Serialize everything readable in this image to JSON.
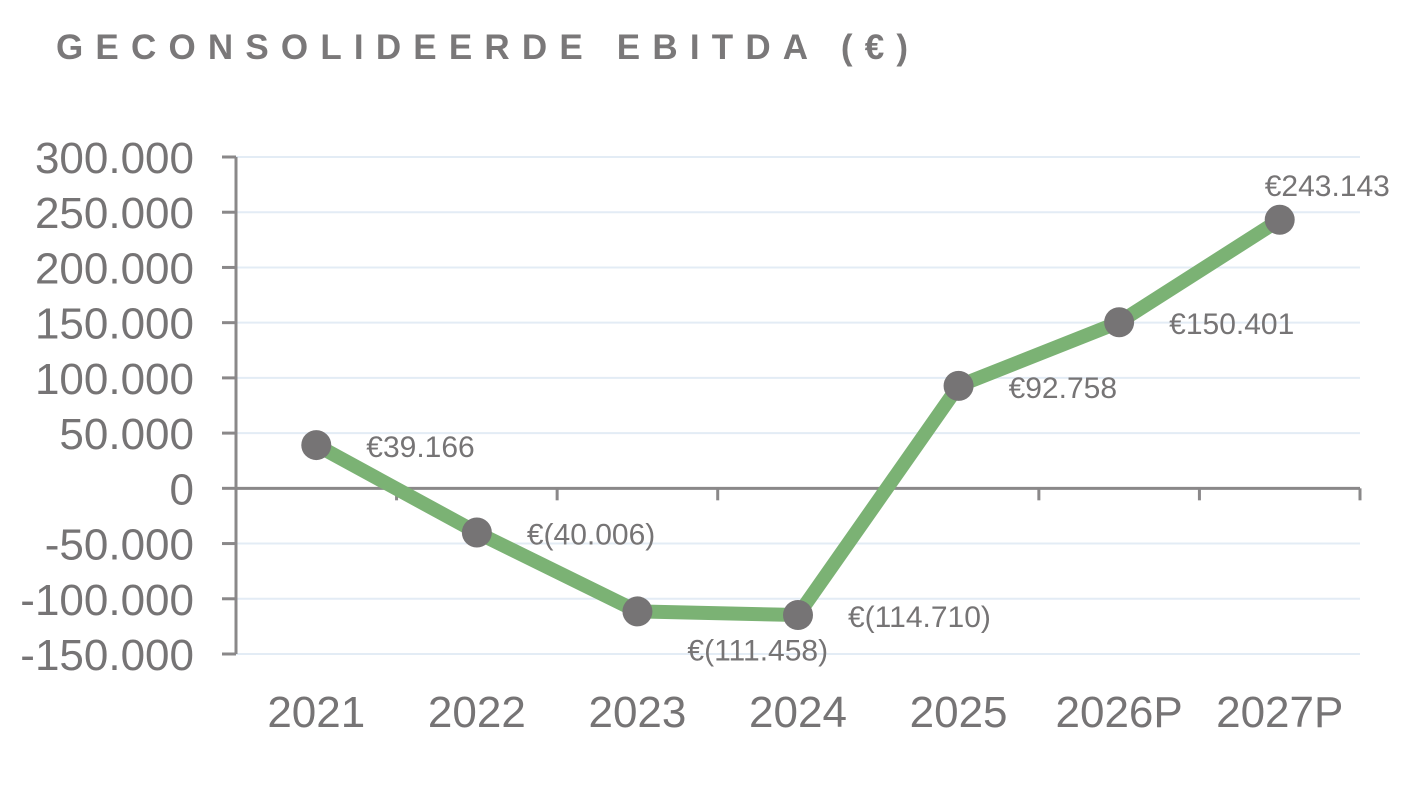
{
  "title": "GECONSOLIDEERDE EBITDA (€)",
  "colors": {
    "line": "#7bb274",
    "marker": "#767475",
    "text": "#767475",
    "axis": "#8a8889",
    "grid": "#e3ecf5"
  },
  "chart_data": {
    "type": "line",
    "title": "GECONSOLIDEERDE EBITDA (€)",
    "xlabel": "",
    "ylabel": "",
    "categories": [
      "2021",
      "2022",
      "2023",
      "2024",
      "2025",
      "2026P",
      "2027P"
    ],
    "series": [
      {
        "values": [
          39166,
          -40006,
          -111458,
          -114710,
          92758,
          150401,
          243143
        ],
        "data_labels": [
          "€39.166",
          "€(40.006)",
          "€(111.458)",
          "€(114.710)",
          "€92.758",
          "€150.401",
          "€243.143"
        ]
      }
    ],
    "ylim": [
      -150000,
      300000
    ],
    "yticks": [
      300000,
      250000,
      200000,
      150000,
      100000,
      50000,
      0,
      -50000,
      -100000,
      -150000
    ],
    "ytick_labels": [
      "300.000",
      "250.000",
      "200.000",
      "150.000",
      "100.000",
      "50.000",
      "0",
      "-50.000",
      "-100.000",
      "-150.000"
    ],
    "grid": true,
    "legend": "none"
  }
}
